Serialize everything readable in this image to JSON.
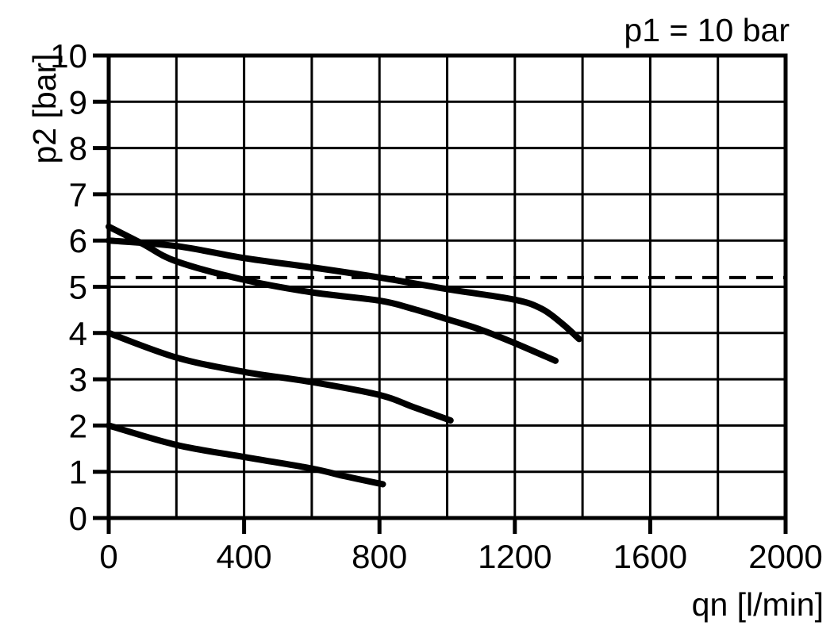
{
  "chart_data": {
    "type": "line",
    "title": "p1 = 10 bar",
    "xlabel": "qn [l/min]",
    "ylabel": "p2 [bar]",
    "xlim": [
      0,
      2000
    ],
    "ylim": [
      0,
      10
    ],
    "x_tick_labels": [
      0,
      400,
      800,
      1200,
      1600,
      2000
    ],
    "y_tick_labels": [
      0,
      1,
      2,
      3,
      4,
      5,
      6,
      7,
      8,
      9,
      10
    ],
    "x_grid_step": 200,
    "y_grid_step": 1,
    "grid": true,
    "legend": false,
    "background_color": "#ffffff",
    "line_color": "#000000",
    "grid_color": "#000000",
    "reference_line": {
      "y": 5.2,
      "style": "dashed"
    },
    "series": [
      {
        "name": "curve-1",
        "style": "solid",
        "points": [
          [
            0,
            6.0
          ],
          [
            200,
            5.88
          ],
          [
            400,
            5.62
          ],
          [
            600,
            5.42
          ],
          [
            800,
            5.2
          ],
          [
            1000,
            4.95
          ],
          [
            1200,
            4.72
          ],
          [
            1280,
            4.52
          ],
          [
            1340,
            4.2
          ],
          [
            1390,
            3.87
          ]
        ]
      },
      {
        "name": "curve-2",
        "style": "solid",
        "points": [
          [
            0,
            6.3
          ],
          [
            100,
            5.93
          ],
          [
            200,
            5.55
          ],
          [
            400,
            5.15
          ],
          [
            600,
            4.88
          ],
          [
            800,
            4.7
          ],
          [
            900,
            4.52
          ],
          [
            1000,
            4.3
          ],
          [
            1100,
            4.07
          ],
          [
            1200,
            3.78
          ],
          [
            1320,
            3.4
          ]
        ]
      },
      {
        "name": "curve-3",
        "style": "solid",
        "points": [
          [
            0,
            4.0
          ],
          [
            200,
            3.47
          ],
          [
            400,
            3.16
          ],
          [
            600,
            2.94
          ],
          [
            800,
            2.66
          ],
          [
            900,
            2.4
          ],
          [
            1010,
            2.11
          ]
        ]
      },
      {
        "name": "curve-4",
        "style": "solid",
        "points": [
          [
            0,
            2.0
          ],
          [
            200,
            1.58
          ],
          [
            400,
            1.32
          ],
          [
            600,
            1.07
          ],
          [
            700,
            0.9
          ],
          [
            810,
            0.73
          ]
        ]
      }
    ]
  }
}
